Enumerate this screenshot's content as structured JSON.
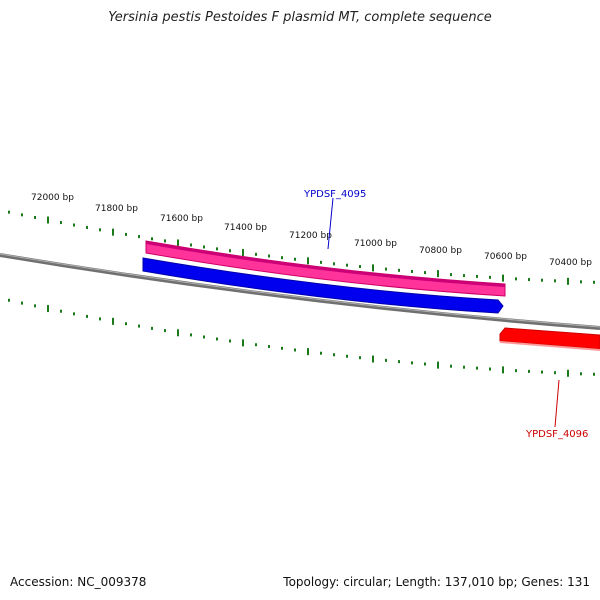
{
  "title": "Yersinia pestis Pestoides F plasmid MT, complete sequence",
  "footer": {
    "accession": "Accession: NC_009378",
    "summary": "Topology: circular; Length: 137,010 bp; Genes: 131"
  },
  "tick_labels": [
    "72000 bp",
    "71800 bp",
    "71600 bp",
    "71400 bp",
    "71200 bp",
    "71000 bp",
    "70800 bp",
    "70600 bp",
    "70400 bp"
  ],
  "genes": [
    {
      "name": "YPDSF_4095",
      "label_color": "#0000cc"
    },
    {
      "name": "YPDSF_4096",
      "label_color": "#cc0000"
    }
  ],
  "colors": {
    "backbone": "#808080",
    "ticks": "#1a7a1a",
    "feature_pink": "#ff3399",
    "feature_blue": "#0000ee",
    "feature_red": "#ff0000"
  }
}
